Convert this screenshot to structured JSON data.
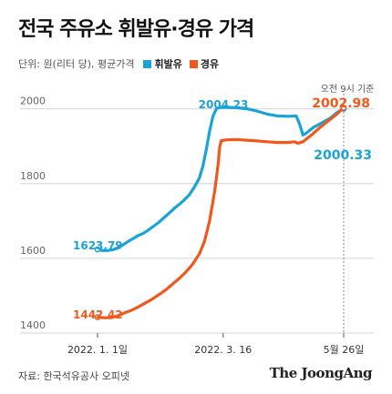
{
  "chart_data": {
    "type": "line",
    "title": "전국 주유소 휘발유·경유 가격",
    "unit_label": "단위: 원(리터 당), 평균가격",
    "ylim": [
      1400,
      2060
    ],
    "yticks": [
      2000,
      1800,
      1600,
      1400
    ],
    "xticks": [
      {
        "label": "2022. 1. 1일",
        "day": 0
      },
      {
        "label": "2022. 3. 16",
        "day": 74
      },
      {
        "label": "5월 26일",
        "day": 145
      }
    ],
    "x_days_max": 145,
    "note": "오전 9시 기준",
    "colors": {
      "gasoline": "#1aa3d6",
      "diesel": "#f0581e"
    },
    "series": [
      {
        "name": "휘발유",
        "key": "gasoline",
        "start_label": "1623.79",
        "peak_label": "2004.23",
        "end_label": "2000.33",
        "points": [
          [
            0,
            1623.79
          ],
          [
            3,
            1621
          ],
          [
            6,
            1621
          ],
          [
            9,
            1623
          ],
          [
            12,
            1628
          ],
          [
            15,
            1636
          ],
          [
            18,
            1645
          ],
          [
            21,
            1653
          ],
          [
            24,
            1661
          ],
          [
            27,
            1667
          ],
          [
            30,
            1676
          ],
          [
            33,
            1686
          ],
          [
            36,
            1696
          ],
          [
            39,
            1708
          ],
          [
            42,
            1720
          ],
          [
            45,
            1733
          ],
          [
            48,
            1744
          ],
          [
            51,
            1756
          ],
          [
            54,
            1770
          ],
          [
            57,
            1790
          ],
          [
            60,
            1815
          ],
          [
            62,
            1845
          ],
          [
            64,
            1890
          ],
          [
            66,
            1940
          ],
          [
            68,
            1980
          ],
          [
            70,
            2000
          ],
          [
            72,
            2004.23
          ],
          [
            76,
            2004
          ],
          [
            82,
            2003
          ],
          [
            88,
            2000
          ],
          [
            94,
            1994
          ],
          [
            100,
            1986
          ],
          [
            106,
            1981
          ],
          [
            112,
            1980
          ],
          [
            117,
            1981
          ],
          [
            119,
            1960
          ],
          [
            121,
            1930
          ],
          [
            123,
            1935
          ],
          [
            127,
            1950
          ],
          [
            132,
            1962
          ],
          [
            137,
            1975
          ],
          [
            141,
            1990
          ],
          [
            145,
            2000.33
          ]
        ]
      },
      {
        "name": "경유",
        "key": "diesel",
        "start_label": "1442.42",
        "peak_label": "",
        "end_label": "2002.98",
        "points": [
          [
            0,
            1442.42
          ],
          [
            4,
            1441
          ],
          [
            8,
            1441
          ],
          [
            12,
            1446
          ],
          [
            16,
            1454
          ],
          [
            20,
            1461
          ],
          [
            24,
            1470
          ],
          [
            28,
            1480
          ],
          [
            32,
            1490
          ],
          [
            36,
            1502
          ],
          [
            40,
            1515
          ],
          [
            44,
            1530
          ],
          [
            48,
            1546
          ],
          [
            52,
            1563
          ],
          [
            56,
            1584
          ],
          [
            60,
            1612
          ],
          [
            63,
            1645
          ],
          [
            66,
            1700
          ],
          [
            69,
            1780
          ],
          [
            71,
            1850
          ],
          [
            72,
            1900
          ],
          [
            73,
            1915
          ],
          [
            76,
            1917
          ],
          [
            82,
            1918
          ],
          [
            88,
            1916
          ],
          [
            94,
            1914
          ],
          [
            100,
            1912
          ],
          [
            106,
            1910
          ],
          [
            112,
            1910
          ],
          [
            116,
            1912
          ],
          [
            118,
            1908
          ],
          [
            121,
            1912
          ],
          [
            126,
            1930
          ],
          [
            131,
            1950
          ],
          [
            136,
            1968
          ],
          [
            141,
            1986
          ],
          [
            145,
            2002.98
          ]
        ]
      }
    ]
  },
  "legend": {
    "gasoline": "휘발유",
    "diesel": "경유"
  },
  "footer": {
    "source": "자료: 한국석유공사 오피넷",
    "brand": "The JoongAng"
  }
}
